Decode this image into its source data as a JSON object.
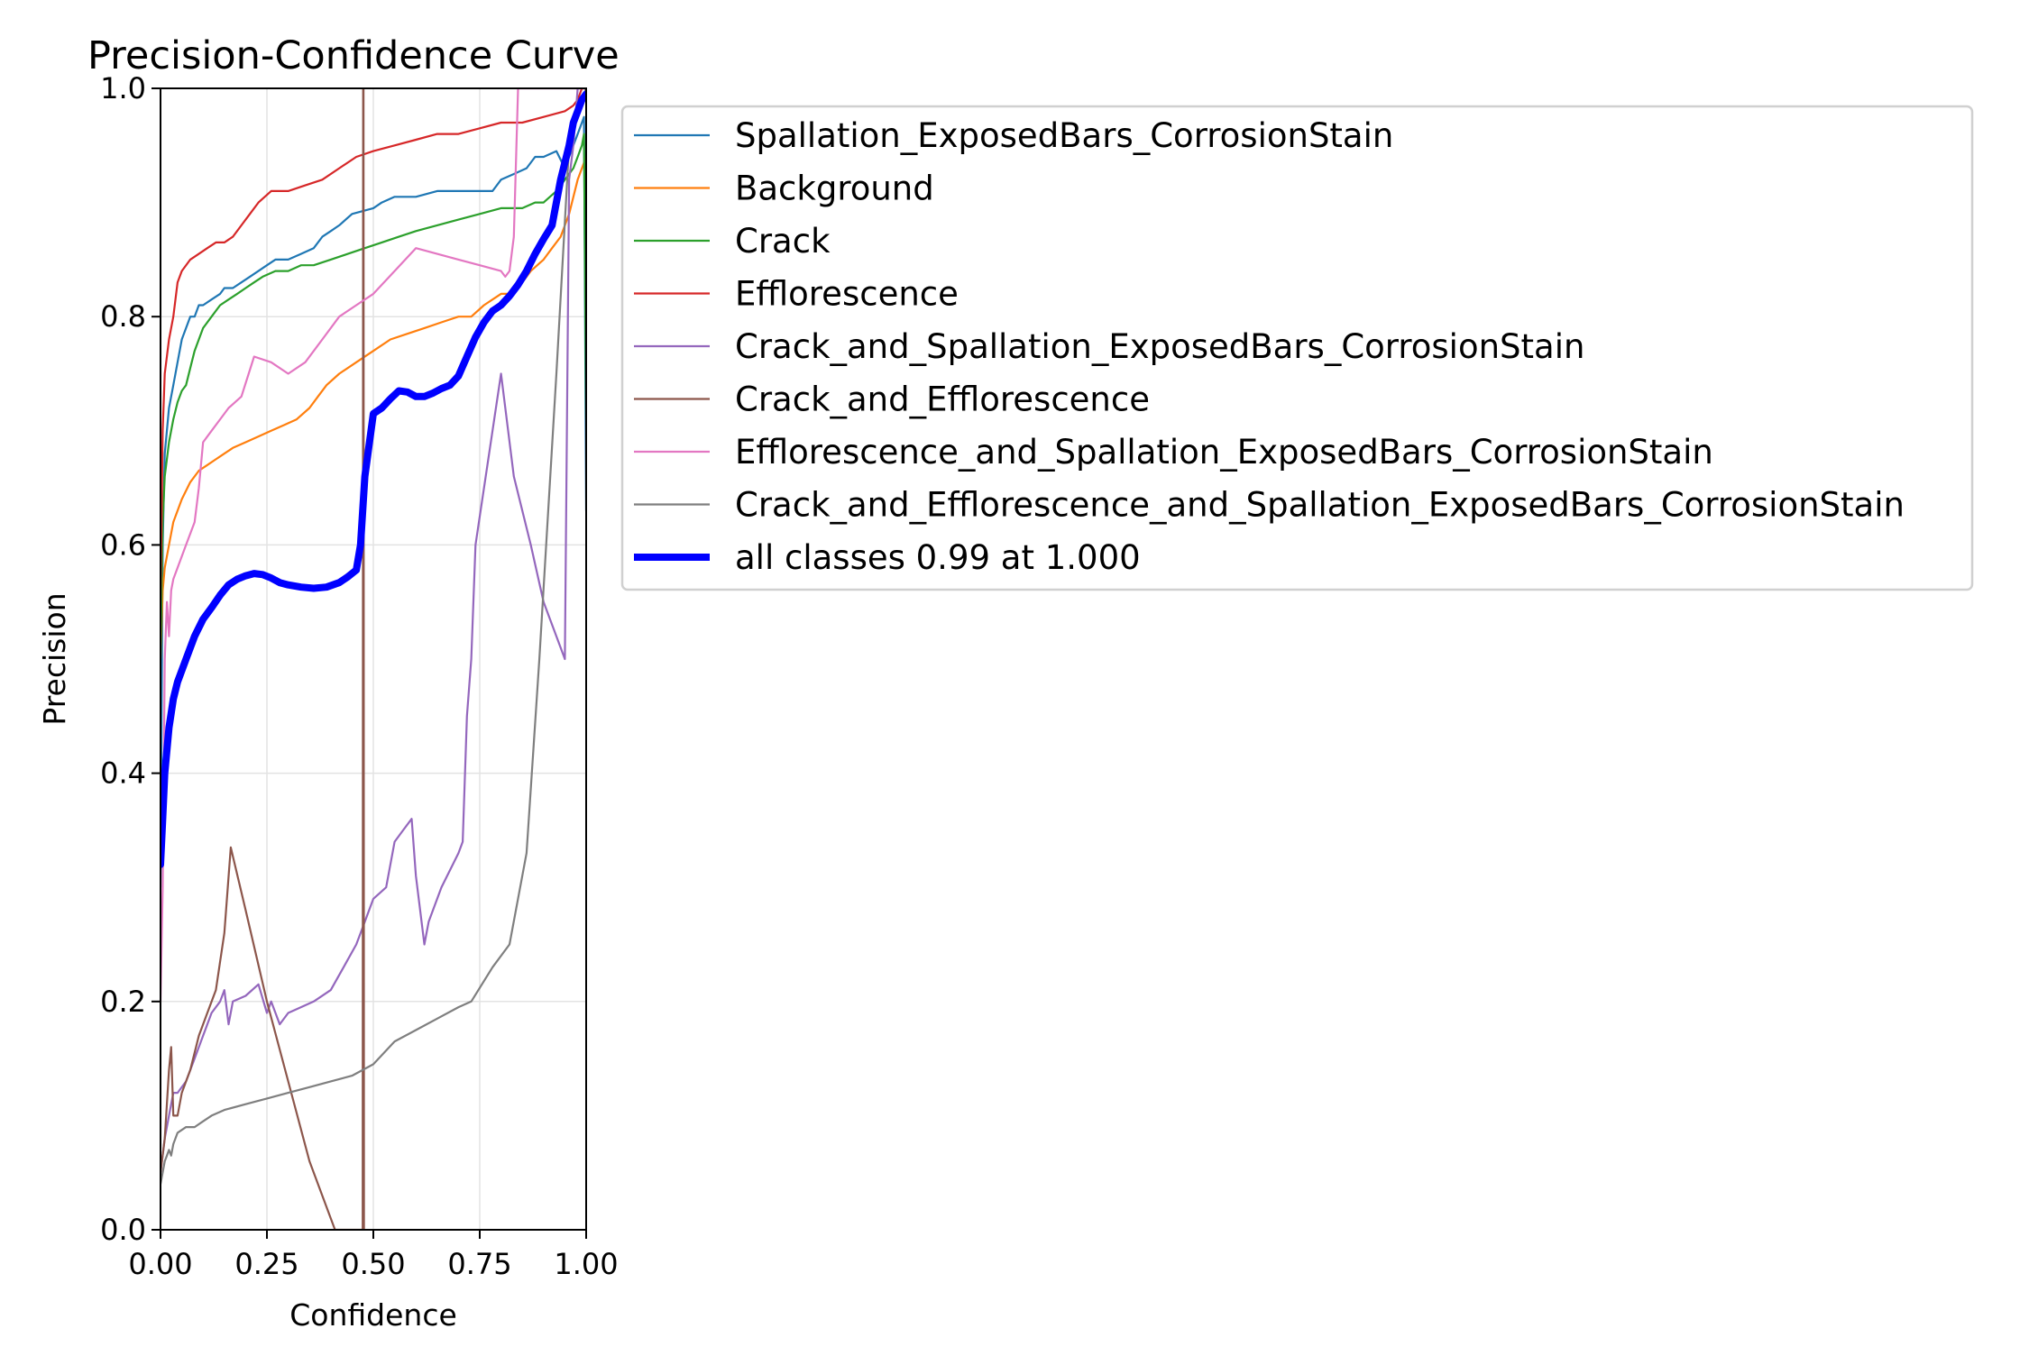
{
  "chart_data": {
    "type": "line",
    "title": "Precision-Confidence Curve",
    "xlabel": "Confidence",
    "ylabel": "Precision",
    "xlim": [
      0,
      1
    ],
    "ylim": [
      0,
      1
    ],
    "xticks": [
      "0.00",
      "0.25",
      "0.50",
      "0.75",
      "1.00"
    ],
    "yticks": [
      "0.0",
      "0.2",
      "0.4",
      "0.6",
      "0.8",
      "1.0"
    ],
    "grid": true,
    "legend_position": "outside-right-top",
    "series": [
      {
        "name": "Spallation_ExposedBars_CorrosionStain",
        "color": "#1f77b4",
        "width": "normal",
        "x": [
          0.0,
          0.005,
          0.01,
          0.02,
          0.03,
          0.04,
          0.05,
          0.06,
          0.07,
          0.08,
          0.09,
          0.1,
          0.12,
          0.14,
          0.15,
          0.17,
          0.19,
          0.21,
          0.23,
          0.25,
          0.27,
          0.3,
          0.33,
          0.36,
          0.38,
          0.4,
          0.42,
          0.45,
          0.5,
          0.52,
          0.55,
          0.6,
          0.65,
          0.7,
          0.75,
          0.78,
          0.8,
          0.83,
          0.86,
          0.88,
          0.9,
          0.93,
          0.95,
          0.97,
          0.98,
          0.99,
          0.995,
          1.0
        ],
        "y": [
          0.3,
          0.6,
          0.68,
          0.72,
          0.74,
          0.76,
          0.78,
          0.79,
          0.8,
          0.8,
          0.81,
          0.81,
          0.815,
          0.82,
          0.825,
          0.825,
          0.83,
          0.835,
          0.84,
          0.845,
          0.85,
          0.85,
          0.855,
          0.86,
          0.87,
          0.875,
          0.88,
          0.89,
          0.895,
          0.9,
          0.905,
          0.905,
          0.91,
          0.91,
          0.91,
          0.91,
          0.92,
          0.925,
          0.93,
          0.94,
          0.94,
          0.945,
          0.93,
          0.95,
          0.96,
          0.97,
          0.975,
          0.63
        ]
      },
      {
        "name": "Background",
        "color": "#ff7f0e",
        "width": "normal",
        "x": [
          0.0,
          0.005,
          0.01,
          0.02,
          0.03,
          0.05,
          0.07,
          0.09,
          0.11,
          0.13,
          0.15,
          0.17,
          0.2,
          0.23,
          0.26,
          0.29,
          0.32,
          0.35,
          0.37,
          0.39,
          0.42,
          0.46,
          0.5,
          0.54,
          0.58,
          0.62,
          0.66,
          0.7,
          0.73,
          0.76,
          0.78,
          0.8,
          0.82,
          0.85,
          0.87,
          0.9,
          0.92,
          0.94,
          0.96,
          0.98,
          1.0
        ],
        "y": [
          0.5,
          0.56,
          0.58,
          0.6,
          0.62,
          0.64,
          0.655,
          0.665,
          0.67,
          0.675,
          0.68,
          0.685,
          0.69,
          0.695,
          0.7,
          0.705,
          0.71,
          0.72,
          0.73,
          0.74,
          0.75,
          0.76,
          0.77,
          0.78,
          0.785,
          0.79,
          0.795,
          0.8,
          0.8,
          0.81,
          0.815,
          0.82,
          0.82,
          0.83,
          0.84,
          0.85,
          0.86,
          0.87,
          0.89,
          0.92,
          0.94
        ]
      },
      {
        "name": "Crack",
        "color": "#2ca02c",
        "width": "normal",
        "x": [
          0.0,
          0.005,
          0.01,
          0.02,
          0.03,
          0.04,
          0.05,
          0.06,
          0.07,
          0.08,
          0.09,
          0.1,
          0.12,
          0.14,
          0.16,
          0.18,
          0.2,
          0.22,
          0.24,
          0.27,
          0.3,
          0.33,
          0.36,
          0.4,
          0.44,
          0.48,
          0.52,
          0.56,
          0.6,
          0.65,
          0.7,
          0.75,
          0.8,
          0.85,
          0.88,
          0.9,
          0.93,
          0.95,
          0.97,
          0.98,
          0.99,
          0.995,
          1.0
        ],
        "y": [
          0.5,
          0.62,
          0.66,
          0.69,
          0.71,
          0.725,
          0.735,
          0.74,
          0.755,
          0.77,
          0.78,
          0.79,
          0.8,
          0.81,
          0.815,
          0.82,
          0.825,
          0.83,
          0.835,
          0.84,
          0.84,
          0.845,
          0.845,
          0.85,
          0.855,
          0.86,
          0.865,
          0.87,
          0.875,
          0.88,
          0.885,
          0.89,
          0.895,
          0.895,
          0.9,
          0.9,
          0.91,
          0.92,
          0.93,
          0.94,
          0.95,
          0.96,
          0.71
        ]
      },
      {
        "name": "Efflorescence",
        "color": "#d62728",
        "width": "normal",
        "x": [
          0.0,
          0.005,
          0.01,
          0.02,
          0.03,
          0.04,
          0.05,
          0.07,
          0.09,
          0.11,
          0.13,
          0.15,
          0.17,
          0.19,
          0.21,
          0.23,
          0.26,
          0.3,
          0.34,
          0.38,
          0.42,
          0.46,
          0.5,
          0.55,
          0.6,
          0.65,
          0.7,
          0.75,
          0.8,
          0.85,
          0.9,
          0.95,
          0.97,
          0.98,
          0.99,
          1.0
        ],
        "y": [
          0.55,
          0.7,
          0.75,
          0.78,
          0.8,
          0.83,
          0.84,
          0.85,
          0.855,
          0.86,
          0.865,
          0.865,
          0.87,
          0.88,
          0.89,
          0.9,
          0.91,
          0.91,
          0.915,
          0.92,
          0.93,
          0.94,
          0.945,
          0.95,
          0.955,
          0.96,
          0.96,
          0.965,
          0.97,
          0.97,
          0.975,
          0.98,
          0.985,
          0.99,
          1.0,
          1.0
        ]
      },
      {
        "name": "Crack_and_Spallation_ExposedBars_CorrosionStain",
        "color": "#9467bd",
        "width": "normal",
        "x": [
          0.0,
          0.01,
          0.02,
          0.03,
          0.04,
          0.06,
          0.08,
          0.1,
          0.12,
          0.14,
          0.15,
          0.16,
          0.17,
          0.2,
          0.23,
          0.25,
          0.26,
          0.28,
          0.3,
          0.33,
          0.36,
          0.4,
          0.43,
          0.46,
          0.48,
          0.5,
          0.53,
          0.55,
          0.57,
          0.59,
          0.6,
          0.62,
          0.63,
          0.66,
          0.7,
          0.71,
          0.72,
          0.73,
          0.74,
          0.8,
          0.83,
          0.87,
          0.9,
          0.93,
          0.95,
          0.96,
          0.97,
          0.98,
          0.99,
          1.0
        ],
        "y": [
          0.05,
          0.08,
          0.1,
          0.12,
          0.12,
          0.13,
          0.15,
          0.17,
          0.19,
          0.2,
          0.21,
          0.18,
          0.2,
          0.205,
          0.215,
          0.19,
          0.2,
          0.18,
          0.19,
          0.195,
          0.2,
          0.21,
          0.23,
          0.25,
          0.27,
          0.29,
          0.3,
          0.34,
          0.35,
          0.36,
          0.31,
          0.25,
          0.27,
          0.3,
          0.33,
          0.34,
          0.45,
          0.5,
          0.6,
          0.75,
          0.66,
          0.6,
          0.55,
          0.52,
          0.5,
          0.92,
          0.95,
          1.0,
          1.0,
          1.0
        ]
      },
      {
        "name": "Crack_and_Efflorescence",
        "color": "#8c564b",
        "width": "normal",
        "x": [
          0.0,
          0.01,
          0.02,
          0.025,
          0.03,
          0.035,
          0.04,
          0.05,
          0.07,
          0.09,
          0.11,
          0.13,
          0.15,
          0.165,
          0.2,
          0.25,
          0.3,
          0.35,
          0.41,
          0.45,
          0.475,
          0.476,
          0.477,
          0.478
        ],
        "y": [
          0.05,
          0.08,
          0.14,
          0.16,
          0.1,
          0.1,
          0.1,
          0.12,
          0.14,
          0.17,
          0.19,
          0.21,
          0.26,
          0.335,
          0.28,
          0.2,
          0.13,
          0.06,
          0.0,
          0.0,
          0.0,
          1.0,
          1.0,
          0.0
        ]
      },
      {
        "name": "Efflorescence_and_Spallation_ExposedBars_CorrosionStain",
        "color": "#e377c2",
        "width": "normal",
        "x": [
          0.0,
          0.005,
          0.01,
          0.015,
          0.02,
          0.025,
          0.03,
          0.04,
          0.06,
          0.08,
          0.09,
          0.1,
          0.12,
          0.14,
          0.16,
          0.19,
          0.22,
          0.26,
          0.3,
          0.34,
          0.38,
          0.42,
          0.46,
          0.5,
          0.55,
          0.6,
          0.65,
          0.7,
          0.75,
          0.8,
          0.81,
          0.82,
          0.83,
          0.84,
          0.85,
          0.86,
          0.87,
          0.9,
          0.93,
          0.96,
          0.98,
          1.0
        ],
        "y": [
          0.2,
          0.3,
          0.5,
          0.55,
          0.52,
          0.56,
          0.57,
          0.58,
          0.6,
          0.62,
          0.65,
          0.69,
          0.7,
          0.71,
          0.72,
          0.73,
          0.765,
          0.76,
          0.75,
          0.76,
          0.78,
          0.8,
          0.81,
          0.82,
          0.84,
          0.86,
          0.855,
          0.85,
          0.845,
          0.84,
          0.835,
          0.84,
          0.87,
          1.0,
          1.0,
          1.0,
          1.0,
          1.0,
          1.0,
          1.0,
          1.0,
          1.0
        ]
      },
      {
        "name": "Crack_and_Efflorescence_and_Spallation_ExposedBars_CorrosionStain",
        "color": "#7f7f7f",
        "width": "normal",
        "x": [
          0.0,
          0.01,
          0.015,
          0.02,
          0.025,
          0.03,
          0.04,
          0.06,
          0.08,
          0.1,
          0.12,
          0.15,
          0.2,
          0.25,
          0.3,
          0.35,
          0.4,
          0.45,
          0.5,
          0.55,
          0.6,
          0.65,
          0.7,
          0.73,
          0.78,
          0.82,
          0.86,
          0.89,
          0.93,
          0.96,
          0.98,
          1.0
        ],
        "y": [
          0.04,
          0.06,
          0.065,
          0.07,
          0.065,
          0.075,
          0.085,
          0.09,
          0.09,
          0.095,
          0.1,
          0.105,
          0.11,
          0.115,
          0.12,
          0.125,
          0.13,
          0.135,
          0.145,
          0.165,
          0.175,
          0.185,
          0.195,
          0.2,
          0.23,
          0.25,
          0.33,
          0.5,
          0.75,
          0.95,
          0.98,
          1.0
        ]
      },
      {
        "name": "all classes 0.99 at 1.000",
        "color": "#0000ff",
        "width": "thick",
        "x": [
          0.0,
          0.005,
          0.01,
          0.02,
          0.03,
          0.04,
          0.06,
          0.08,
          0.1,
          0.12,
          0.14,
          0.16,
          0.18,
          0.2,
          0.22,
          0.24,
          0.26,
          0.28,
          0.3,
          0.33,
          0.36,
          0.39,
          0.42,
          0.44,
          0.46,
          0.47,
          0.48,
          0.5,
          0.52,
          0.54,
          0.56,
          0.58,
          0.6,
          0.62,
          0.64,
          0.66,
          0.68,
          0.7,
          0.72,
          0.74,
          0.76,
          0.78,
          0.8,
          0.82,
          0.84,
          0.86,
          0.88,
          0.9,
          0.92,
          0.94,
          0.96,
          0.97,
          0.98,
          0.99,
          1.0
        ],
        "y": [
          0.32,
          0.36,
          0.4,
          0.44,
          0.465,
          0.48,
          0.5,
          0.52,
          0.535,
          0.545,
          0.556,
          0.565,
          0.57,
          0.573,
          0.575,
          0.574,
          0.571,
          0.567,
          0.565,
          0.563,
          0.562,
          0.563,
          0.567,
          0.572,
          0.578,
          0.6,
          0.66,
          0.715,
          0.72,
          0.728,
          0.735,
          0.734,
          0.73,
          0.73,
          0.733,
          0.737,
          0.74,
          0.748,
          0.765,
          0.782,
          0.795,
          0.805,
          0.81,
          0.818,
          0.828,
          0.84,
          0.855,
          0.868,
          0.88,
          0.92,
          0.95,
          0.97,
          0.98,
          0.99,
          0.995
        ]
      }
    ]
  }
}
